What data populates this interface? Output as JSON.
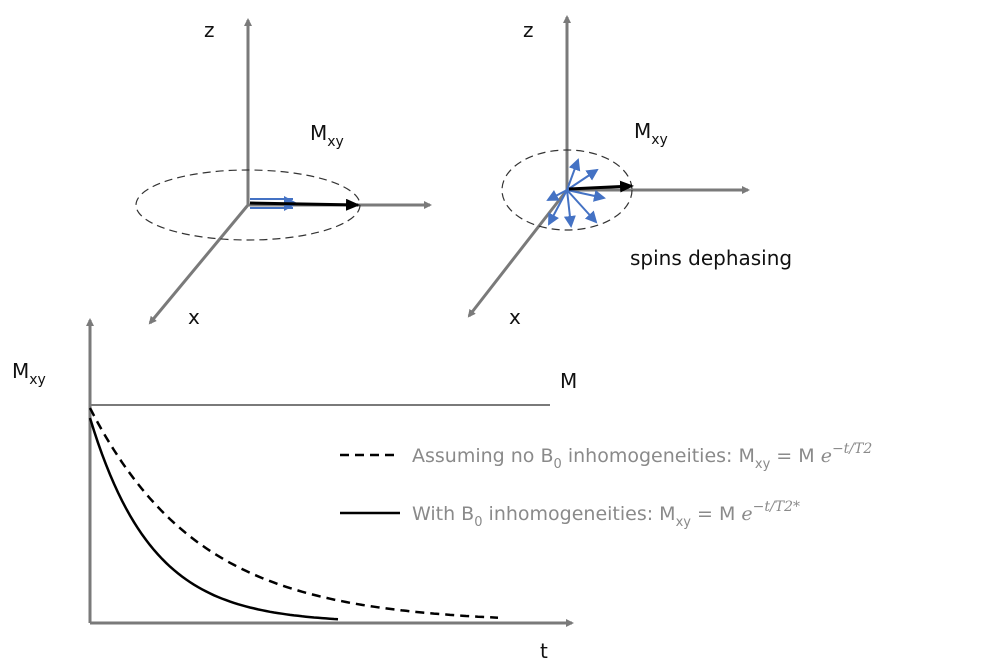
{
  "left_axes": {
    "z_label": "z",
    "x_label": "x",
    "m_main": "M",
    "m_sub": "xy"
  },
  "right_axes": {
    "z_label": "z",
    "x_label": "x",
    "m_main": "M",
    "m_sub": "xy",
    "caption": "spins dephasing"
  },
  "graph": {
    "y_label_main": "M",
    "y_label_sub": "xy",
    "x_label": "t",
    "level_label": "M",
    "legend": [
      {
        "text": "Assuming no B",
        "sub1": "0",
        "text2": " inhomogeneities: M",
        "sub2": "xy",
        "eq": " = M ",
        "base": "e",
        "exponent": "−t/T2"
      },
      {
        "text": "With B",
        "sub1": "0",
        "text2": " inhomogeneities: M",
        "sub2": "xy",
        "eq": " = M ",
        "base": "e",
        "exponent": "−t/T2*"
      }
    ]
  }
}
